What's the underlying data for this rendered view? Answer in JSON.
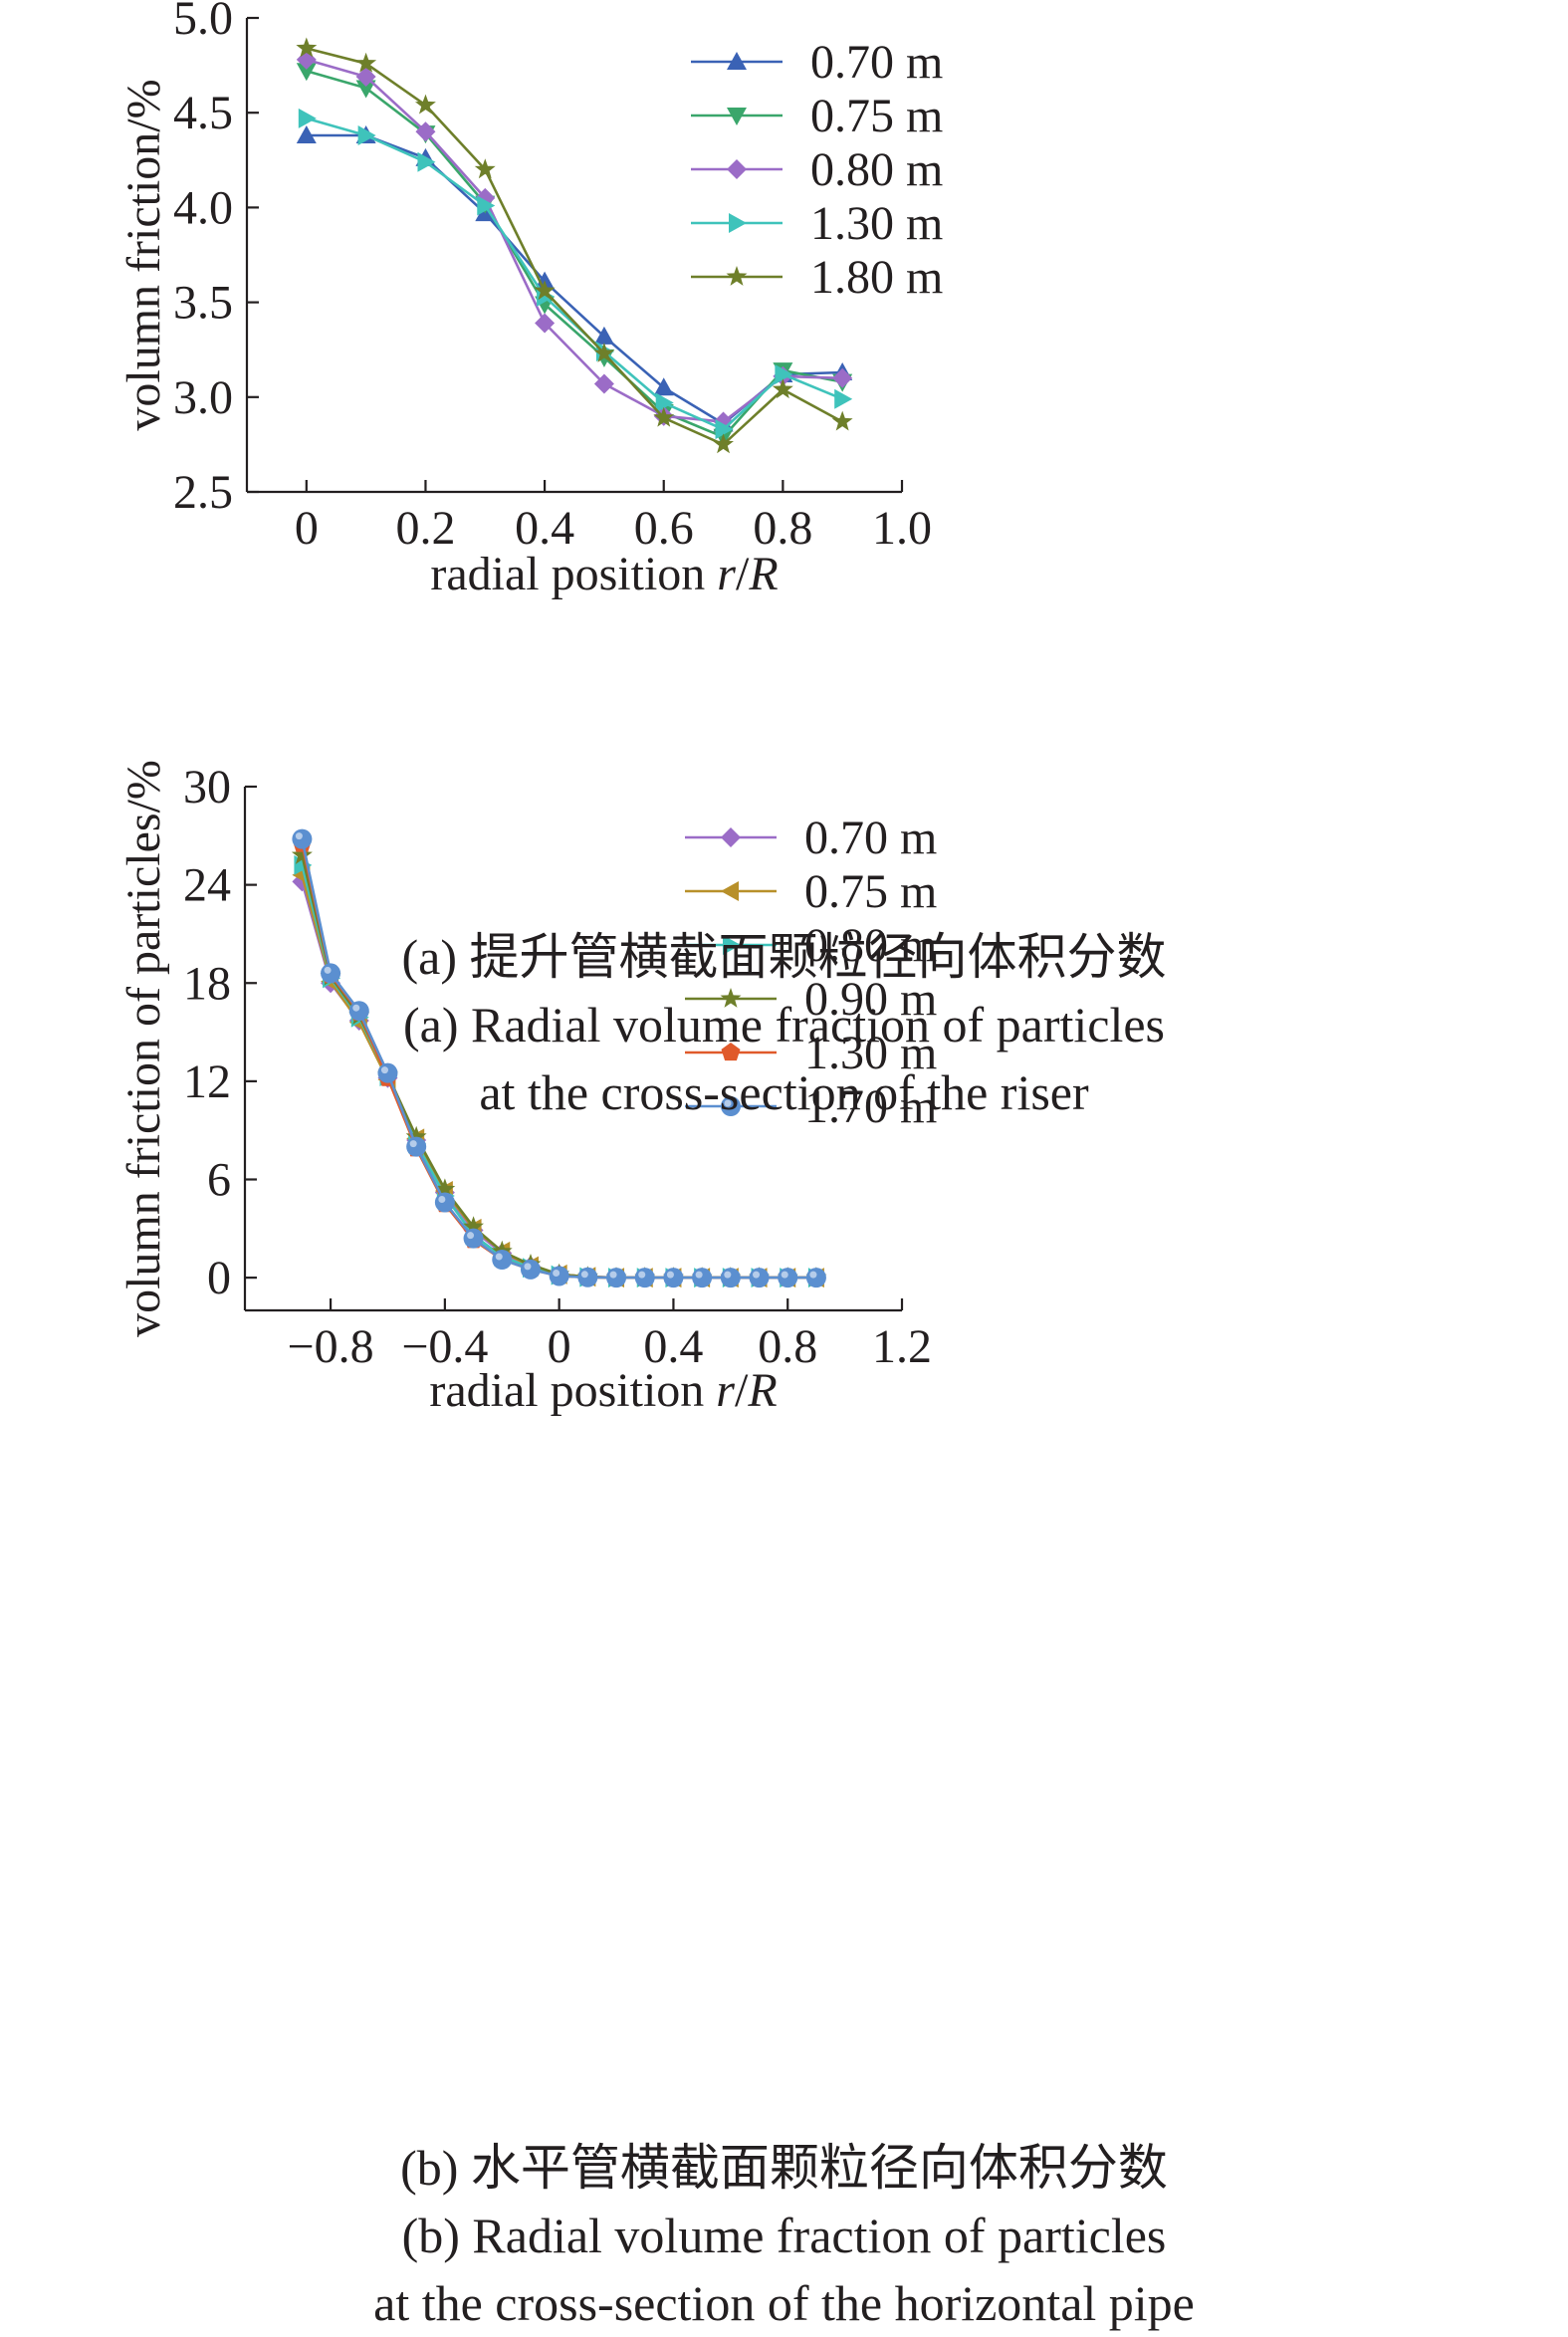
{
  "chart_data": [
    {
      "type": "line",
      "title": "",
      "xlabel_prefix": "radial position ",
      "xlabel_var": "r",
      "xlabel_sep": "/",
      "xlabel_var2": "R",
      "ylabel": "volumn friction/%",
      "xlim": [
        -0.1,
        1.0
      ],
      "ylim": [
        2.5,
        5.0
      ],
      "xticks": [
        0,
        0.2,
        0.4,
        0.6,
        0.8,
        1.0
      ],
      "xtick_labels": [
        "0",
        "0.2",
        "0.4",
        "0.6",
        "0.8",
        "1.0"
      ],
      "yticks": [
        2.5,
        3.0,
        3.5,
        4.0,
        4.5,
        5.0
      ],
      "ytick_labels": [
        "2.5",
        "3.0",
        "3.5",
        "4.0",
        "4.5",
        "5.0"
      ],
      "legend_position": "top-right",
      "x": [
        0,
        0.1,
        0.2,
        0.3,
        0.4,
        0.5,
        0.6,
        0.7,
        0.8,
        0.9
      ],
      "series": [
        {
          "name": "0.70 m",
          "marker": "triangle-up",
          "color": "#3a62b5",
          "values": [
            4.38,
            4.38,
            4.26,
            3.97,
            3.61,
            3.32,
            3.05,
            2.86,
            3.12,
            3.13
          ]
        },
        {
          "name": "0.75 m",
          "marker": "triangle-down",
          "color": "#3aa66b",
          "values": [
            4.72,
            4.63,
            4.39,
            4.02,
            3.49,
            3.21,
            2.92,
            2.79,
            3.14,
            3.08
          ]
        },
        {
          "name": "0.80 m",
          "marker": "diamond",
          "color": "#9b6cc7",
          "values": [
            4.78,
            4.69,
            4.4,
            4.05,
            3.39,
            3.07,
            2.9,
            2.87,
            3.11,
            3.1
          ]
        },
        {
          "name": "1.30 m",
          "marker": "triangle-right",
          "color": "#3fc3bb",
          "values": [
            4.47,
            4.38,
            4.24,
            4.01,
            3.53,
            3.24,
            2.97,
            2.83,
            3.12,
            2.99
          ]
        },
        {
          "name": "1.80 m",
          "marker": "star",
          "color": "#6e7f2a",
          "values": [
            4.84,
            4.76,
            4.54,
            4.2,
            3.56,
            3.23,
            2.89,
            2.75,
            3.04,
            2.87
          ]
        }
      ]
    },
    {
      "type": "line",
      "title": "",
      "xlabel_prefix": "radial position ",
      "xlabel_var": "r",
      "xlabel_sep": "/",
      "xlabel_var2": "R",
      "ylabel": "volumn friction of particles/%",
      "xlim": [
        -1.1,
        1.2
      ],
      "ylim": [
        -2,
        30
      ],
      "xticks": [
        -0.8,
        -0.4,
        0,
        0.4,
        0.8,
        1.2
      ],
      "xtick_labels": [
        "−0.8",
        "−0.4",
        "0",
        "0.4",
        "0.8",
        "1.2"
      ],
      "yticks": [
        0,
        6,
        12,
        18,
        24,
        30
      ],
      "ytick_labels": [
        "0",
        "6",
        "12",
        "18",
        "24",
        "30"
      ],
      "legend_position": "top-right",
      "x": [
        -0.9,
        -0.8,
        -0.7,
        -0.6,
        -0.5,
        -0.4,
        -0.3,
        -0.2,
        -0.1,
        0,
        0.1,
        0.2,
        0.3,
        0.4,
        0.5,
        0.6,
        0.7,
        0.8,
        0.9
      ],
      "series": [
        {
          "name": "0.70 m",
          "marker": "diamond",
          "color": "#9b6cc7",
          "values": [
            24.2,
            18.0,
            15.7,
            12.2,
            8.4,
            5.2,
            2.9,
            1.5,
            0.7,
            0.2,
            0.05,
            0,
            0,
            0,
            0,
            0,
            0,
            0,
            0
          ]
        },
        {
          "name": "0.75 m",
          "marker": "triangle-left",
          "color": "#b8902a",
          "values": [
            24.6,
            18.1,
            15.6,
            12.1,
            8.5,
            5.3,
            3.0,
            1.6,
            0.7,
            0.2,
            0.05,
            0,
            0,
            0,
            0,
            0,
            0,
            0,
            0
          ]
        },
        {
          "name": "0.80 m",
          "marker": "triangle-right",
          "color": "#3fc3bb",
          "values": [
            25.2,
            18.3,
            15.9,
            12.3,
            8.2,
            5.0,
            2.6,
            1.3,
            0.6,
            0.15,
            0.03,
            0,
            0,
            0,
            0,
            0,
            0,
            0,
            0
          ]
        },
        {
          "name": "0.90 m",
          "marker": "star",
          "color": "#6e7f2a",
          "values": [
            25.8,
            18.4,
            16.0,
            12.4,
            8.6,
            5.4,
            3.1,
            1.6,
            0.8,
            0.2,
            0.05,
            0,
            0,
            0,
            0,
            0,
            0,
            0,
            0
          ]
        },
        {
          "name": "1.30 m",
          "marker": "pentagon",
          "color": "#e05a2b",
          "values": [
            26.5,
            18.5,
            16.2,
            12.2,
            7.9,
            4.5,
            2.3,
            1.1,
            0.5,
            0.1,
            0.02,
            0,
            0,
            0,
            0,
            0,
            0,
            0,
            0
          ]
        },
        {
          "name": "1.70 m",
          "marker": "circle",
          "color": "#5b8fd0",
          "values": [
            26.8,
            18.6,
            16.3,
            12.5,
            8.0,
            4.6,
            2.4,
            1.1,
            0.5,
            0.1,
            0.02,
            0,
            0,
            0,
            0,
            0,
            0,
            0,
            0
          ]
        }
      ]
    }
  ],
  "captions": {
    "a_cn": "(a) 提升管横截面颗粒径向体积分数",
    "a_en_1": "(a) Radial volume fraction of particles",
    "a_en_2": "at the cross-section of the riser",
    "b_cn": "(b) 水平管横截面颗粒径向体积分数",
    "b_en_1": "(b) Radial volume fraction of particles",
    "b_en_2": "at the cross-section of the horizontal pipe"
  }
}
